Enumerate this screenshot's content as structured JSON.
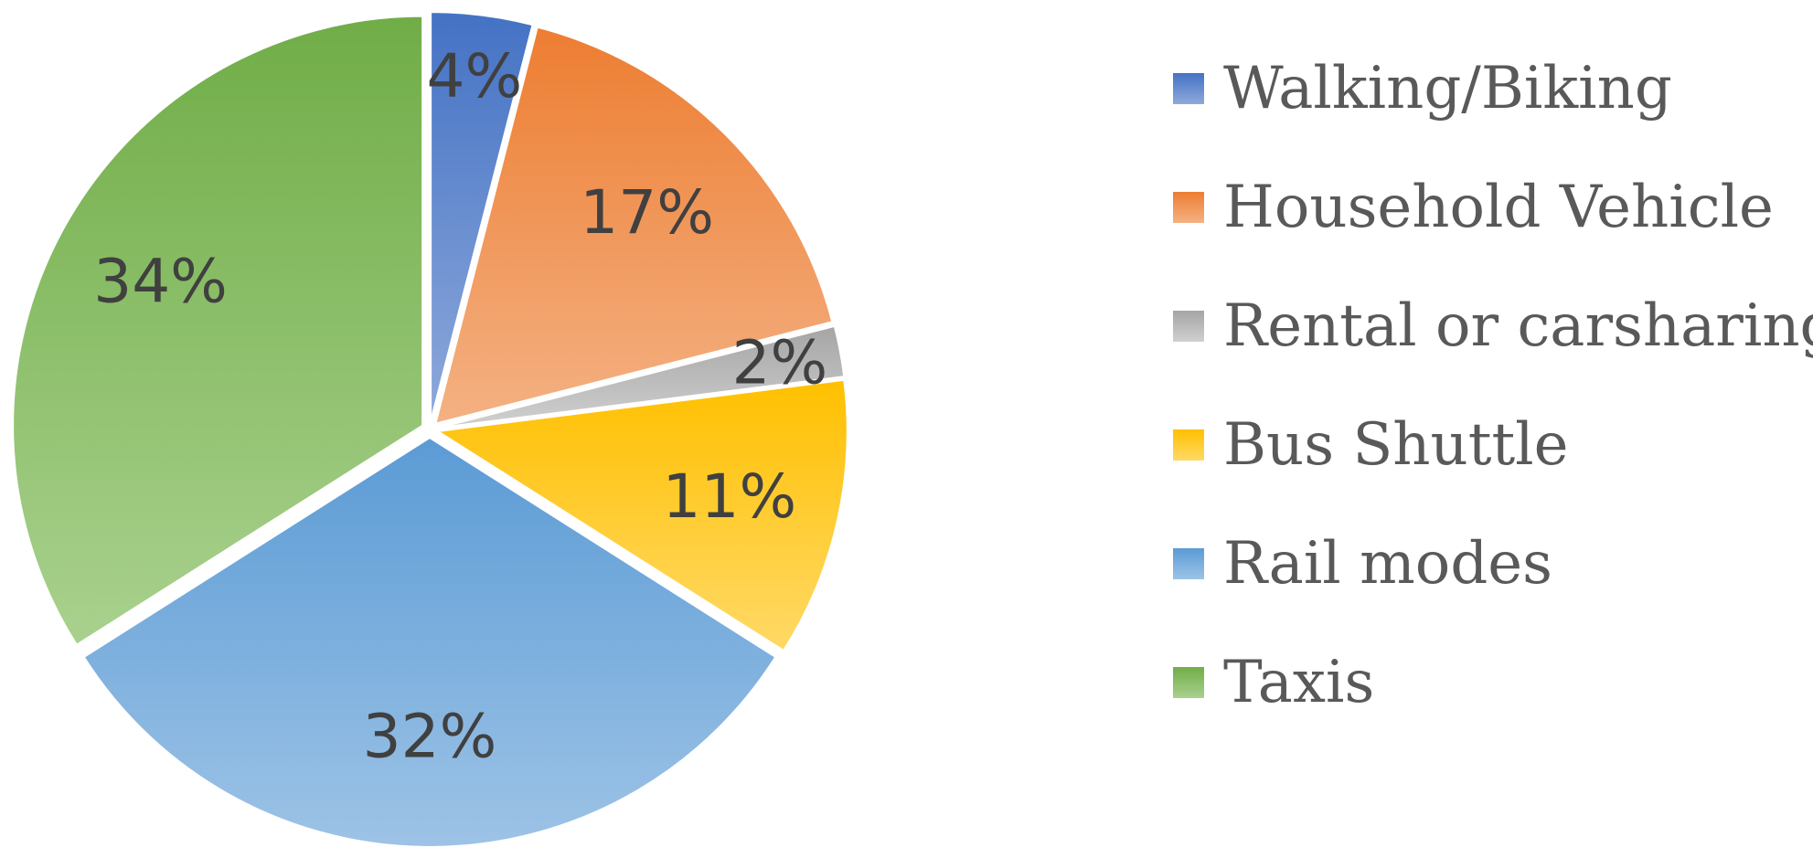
{
  "chart_data": {
    "type": "pie",
    "title": "",
    "slices": [
      {
        "label": "Walking/Biking",
        "value": 4,
        "value_label": "4%",
        "color_top": "#4472C4",
        "color_bottom": "#8EA9DB"
      },
      {
        "label": "Household Vehicle",
        "value": 17,
        "value_label": "17%",
        "color_top": "#ED7D31",
        "color_bottom": "#F4B183"
      },
      {
        "label": "Rental or carsharing",
        "value": 2,
        "value_label": "2%",
        "color_top": "#A5A5A5",
        "color_bottom": "#D0D0D0"
      },
      {
        "label": "Bus Shuttle",
        "value": 11,
        "value_label": "11%",
        "color_top": "#FFC000",
        "color_bottom": "#FFD966"
      },
      {
        "label": "Rail modes",
        "value": 32,
        "value_label": "32%",
        "color_top": "#5B9BD5",
        "color_bottom": "#9DC3E6"
      },
      {
        "label": "Taxis",
        "value": 34,
        "value_label": "34%",
        "color_top": "#70AD47",
        "color_bottom": "#A9D18E"
      }
    ],
    "legend_position": "right",
    "start_angle": "12 o'clock",
    "direction": "clockwise"
  }
}
